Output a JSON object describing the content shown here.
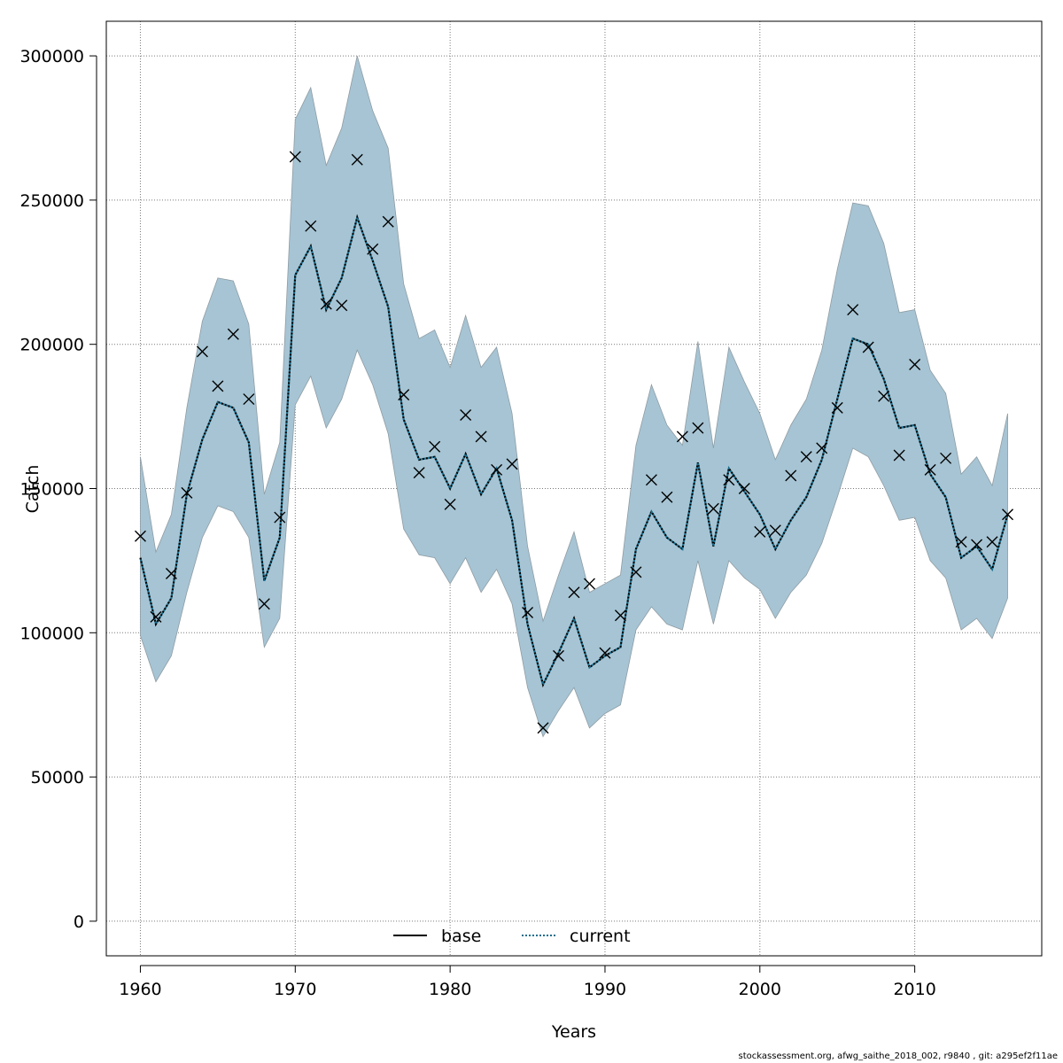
{
  "chart_data": {
    "type": "line",
    "xlabel": "Years",
    "ylabel": "Catch",
    "xlim": [
      1957.8,
      2018.2
    ],
    "ylim": [
      -12000,
      312000
    ],
    "x_ticks": [
      1960,
      1970,
      1980,
      1990,
      2000,
      2010
    ],
    "y_ticks": [
      0,
      50000,
      100000,
      150000,
      200000,
      250000,
      300000
    ],
    "grid": true,
    "legend_position": "bottom-center",
    "legend": [
      {
        "name": "base",
        "style": "solid",
        "color": "#000000"
      },
      {
        "name": "current",
        "style": "dotted",
        "color": "#1a6e8e"
      }
    ],
    "band_color": "#a6c4d4",
    "years": [
      1960,
      1961,
      1962,
      1963,
      1964,
      1965,
      1966,
      1967,
      1968,
      1969,
      1970,
      1971,
      1972,
      1973,
      1974,
      1975,
      1976,
      1977,
      1978,
      1979,
      1980,
      1981,
      1982,
      1983,
      1984,
      1985,
      1986,
      1987,
      1988,
      1989,
      1990,
      1991,
      1992,
      1993,
      1994,
      1995,
      1996,
      1997,
      1998,
      1999,
      2000,
      2001,
      2002,
      2003,
      2004,
      2005,
      2006,
      2007,
      2008,
      2009,
      2010,
      2011,
      2012,
      2013,
      2014,
      2015,
      2016
    ],
    "series": [
      {
        "name": "base",
        "upper": [
          161000,
          128000,
          141000,
          178000,
          208000,
          223000,
          222000,
          207000,
          148000,
          166000,
          278000,
          289000,
          262000,
          275000,
          300000,
          281000,
          268000,
          221000,
          202000,
          205000,
          192000,
          210000,
          192000,
          199000,
          176000,
          130000,
          104000,
          120000,
          135000,
          114000,
          117000,
          120000,
          165000,
          186000,
          172000,
          165000,
          201000,
          164000,
          199000,
          187000,
          176000,
          160000,
          172000,
          181000,
          198000,
          226000,
          249000,
          248000,
          235000,
          211000,
          212000,
          191000,
          183000,
          155000,
          161000,
          151000,
          176000
        ],
        "lower": [
          99000,
          83000,
          92000,
          114000,
          133000,
          144000,
          142000,
          133000,
          95000,
          105000,
          179000,
          189000,
          171000,
          181000,
          198000,
          186000,
          169000,
          136000,
          127000,
          126000,
          117000,
          126000,
          114000,
          122000,
          110000,
          81000,
          64000,
          73000,
          81000,
          67000,
          72000,
          75000,
          101000,
          109000,
          103000,
          101000,
          125000,
          103000,
          125000,
          119000,
          115000,
          105000,
          114000,
          120000,
          131000,
          147000,
          164000,
          161000,
          151000,
          139000,
          140000,
          125000,
          119000,
          101000,
          105000,
          98000,
          112000
        ],
        "values": [
          126000,
          103000,
          112000,
          148000,
          167000,
          180000,
          178000,
          166000,
          118000,
          133000,
          224000,
          234000,
          212000,
          223000,
          244000,
          229000,
          213000,
          174000,
          160000,
          161000,
          150000,
          162000,
          148000,
          157000,
          139000,
          103000,
          82000,
          93000,
          105000,
          88000,
          92000,
          95000,
          129000,
          142000,
          133000,
          129000,
          159000,
          130000,
          157000,
          149000,
          141000,
          129000,
          139000,
          147000,
          160000,
          181000,
          202000,
          200000,
          188000,
          171000,
          172000,
          155000,
          147000,
          126000,
          130000,
          122000,
          141000
        ]
      },
      {
        "name": "current",
        "values": [
          126000,
          103000,
          112000,
          148000,
          167000,
          180000,
          178000,
          166000,
          118000,
          133000,
          224000,
          234000,
          212000,
          223000,
          244000,
          229000,
          213000,
          174000,
          160000,
          161000,
          150000,
          162000,
          148000,
          157000,
          139000,
          103000,
          82000,
          93000,
          105000,
          88000,
          92000,
          95000,
          129000,
          142000,
          133000,
          129000,
          159000,
          130000,
          157000,
          149000,
          141000,
          129000,
          139000,
          147000,
          160000,
          181000,
          202000,
          200000,
          188000,
          171000,
          172000,
          155000,
          147000,
          126000,
          130000,
          122000,
          141000
        ]
      }
    ],
    "observed": [
      133500,
      105500,
      120500,
      148500,
      197500,
      185500,
      203500,
      181000,
      110000,
      140000,
      265000,
      241000,
      214000,
      213500,
      264000,
      233000,
      242500,
      182500,
      155500,
      164500,
      144500,
      175500,
      168000,
      156500,
      158500,
      107000,
      67000,
      92000,
      114000,
      117000,
      93000,
      106000,
      121000,
      153000,
      147000,
      168000,
      171000,
      143000,
      153000,
      150000,
      135000,
      135500,
      154500,
      161000,
      164000,
      178000,
      212000,
      199000,
      182000,
      161500,
      193000,
      156500,
      160500,
      131500,
      130500,
      131500,
      141000
    ]
  },
  "footer_text": "stockassessment.org, afwg_saithe_2018_002, r9840 , git: a295ef2f11ae"
}
